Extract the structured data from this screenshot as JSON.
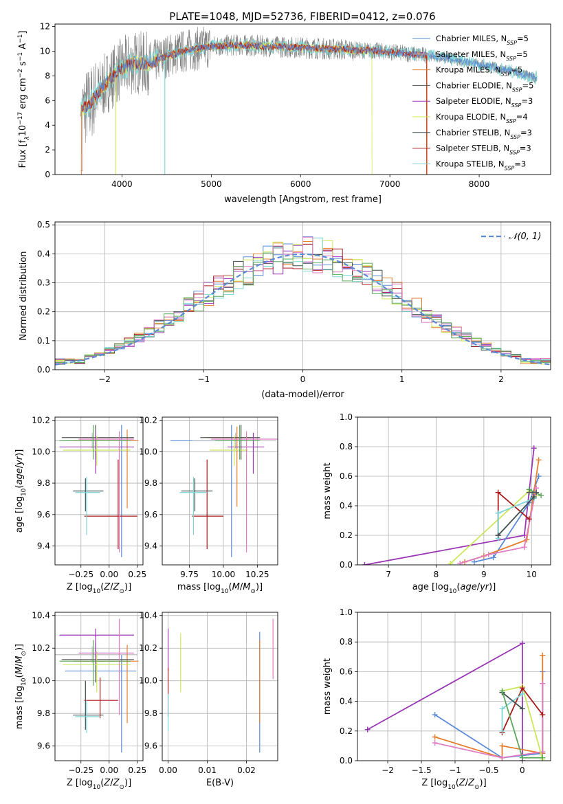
{
  "figure": {
    "title": "PLATE=1048, MJD=52736, FIBERID=0412, z=0.076"
  },
  "colors": {
    "chab_miles": "#5b8bd6",
    "salp_miles": "#bfbfbf",
    "krou_miles": "#e67c2a",
    "chab_elodie": "#555555",
    "salp_elodie": "#9a36b4",
    "krou_elodie": "#cce85a",
    "chab_stelib": "#3f4f4f",
    "salp_stelib": "#aa1a1a",
    "krou_stelib": "#7ed6d6",
    "pink": "#e07bc3",
    "green": "#5aa85a",
    "flux_gray": "#808080",
    "normal_curve": "#5b8bd6"
  },
  "chart_data": [
    {
      "id": "spectrum",
      "type": "line",
      "title": "PLATE=1048, MJD=52736, FIBERID=0412, z=0.076",
      "xlabel": "wavelength [Angstrom, rest frame]",
      "ylabel_parts": [
        "Flux [f",
        "λ",
        "10",
        "−17",
        " erg cm",
        "−2",
        " s",
        "−1",
        " A",
        "−1",
        "]"
      ],
      "xlim": [
        3250,
        8800
      ],
      "ylim": [
        0,
        12.2
      ],
      "xticks": [
        4000,
        5000,
        6000,
        7000,
        8000
      ],
      "yticks": [
        0,
        2,
        4,
        6,
        8,
        10,
        12
      ],
      "grid": false,
      "legend_position": "top-right",
      "legend": [
        {
          "label": "Chabrier MILES, N",
          "n": "5"
        },
        {
          "label": "Salpeter MILES, N",
          "n": "5"
        },
        {
          "label": "Kroupa MILES, N",
          "n": "5"
        },
        {
          "label": "Chabrier ELODIE, N",
          "n": "5"
        },
        {
          "label": "Salpeter ELODIE, N",
          "n": "3"
        },
        {
          "label": "Kroupa ELODIE, N",
          "n": "4"
        },
        {
          "label": "Chabrier STELIB, N",
          "n": "3"
        },
        {
          "label": "Salpeter STELIB, N",
          "n": "3"
        },
        {
          "label": "Kroupa STELIB, N",
          "n": "3"
        }
      ],
      "legend_subscript": "SSP",
      "continuum": [
        [
          3550,
          5.2
        ],
        [
          3650,
          5.8
        ],
        [
          3750,
          6.8
        ],
        [
          3850,
          7.6
        ],
        [
          3950,
          8.3
        ],
        [
          4050,
          8.8
        ],
        [
          4150,
          9.1
        ],
        [
          4300,
          9.0
        ],
        [
          4500,
          9.6
        ],
        [
          4700,
          10.0
        ],
        [
          5000,
          10.4
        ],
        [
          5300,
          10.5
        ],
        [
          5600,
          10.4
        ],
        [
          6000,
          10.3
        ],
        [
          6300,
          10.2
        ],
        [
          6600,
          10.1
        ],
        [
          6900,
          10.0
        ],
        [
          7200,
          9.8
        ],
        [
          7500,
          9.6
        ],
        [
          7800,
          9.2
        ],
        [
          8100,
          8.8
        ],
        [
          8400,
          8.3
        ],
        [
          8650,
          7.8
        ]
      ]
    },
    {
      "id": "residuals",
      "type": "histogram",
      "xlabel": "(data-model)/error",
      "ylabel": "Normed distribution",
      "xlim": [
        -2.5,
        2.5
      ],
      "ylim": [
        0,
        0.51
      ],
      "xticks": [
        -2,
        -1,
        0,
        1,
        2
      ],
      "yticks": [
        0.0,
        0.1,
        0.2,
        0.3,
        0.4,
        0.5
      ],
      "grid": true,
      "legend_position": "top-right",
      "legend_label": "𝒩(0, 1)",
      "bin_width": 0.1
    },
    {
      "id": "age_vs_Z",
      "type": "errorbar",
      "xlabel": "Z [log10(Z/Z⊙)]",
      "ylabel": "age  [log10(age/yr)]",
      "xlim": [
        -0.48,
        0.3
      ],
      "ylim": [
        9.28,
        10.22
      ],
      "xticks": [
        -0.25,
        0.0,
        0.25
      ],
      "yticks": [
        9.4,
        9.6,
        9.8,
        10.0,
        10.2
      ],
      "grid": true,
      "points": [
        {
          "c": "chab_miles",
          "x": 0.11,
          "y": 10.07,
          "xe": [
            0.5,
            0.13
          ],
          "ye": [
            0.74,
            0.1
          ]
        },
        {
          "c": "salp_miles",
          "x": -0.15,
          "y": 10.07,
          "xe": [
            0.33,
            0.38
          ],
          "ye": [
            0.05,
            0.05
          ]
        },
        {
          "c": "krou_miles",
          "x": 0.16,
          "y": 10.07,
          "xe": [
            0.48,
            0.1
          ],
          "ye": [
            0.43,
            0.07
          ]
        },
        {
          "c": "chab_elodie",
          "x": -0.12,
          "y": 10.09,
          "xe": [
            0.3,
            0.34
          ],
          "ye": [
            0.14,
            0.08
          ]
        },
        {
          "c": "salp_elodie",
          "x": -0.12,
          "y": 10.03,
          "xe": [
            0.32,
            0.34
          ],
          "ye": [
            0.17,
            0.09
          ]
        },
        {
          "c": "krou_elodie",
          "x": -0.11,
          "y": 10.01,
          "xe": [
            0.3,
            0.3
          ],
          "ye": [
            0.1,
            0.09
          ]
        },
        {
          "c": "chab_stelib",
          "x": -0.21,
          "y": 9.75,
          "xe": [
            0.11,
            0.16
          ],
          "ye": [
            0.13,
            0.08
          ]
        },
        {
          "c": "salp_stelib",
          "x": 0.08,
          "y": 9.59,
          "xe": [
            0.3,
            0.17
          ],
          "ye": [
            0.21,
            0.36
          ]
        },
        {
          "c": "krou_stelib",
          "x": -0.2,
          "y": 9.74,
          "xe": [
            0.1,
            0.12
          ],
          "ye": [
            0.27,
            0.1
          ]
        },
        {
          "c": "pink",
          "x": 0.09,
          "y": 10.08,
          "xe": [
            0.36,
            0.13
          ],
          "ye": [
            0.72,
            0.05
          ]
        },
        {
          "c": "green",
          "x": -0.14,
          "y": 10.07,
          "xe": [
            0.3,
            0.33
          ],
          "ye": [
            0.12,
            0.1
          ]
        }
      ]
    },
    {
      "id": "age_vs_mass",
      "type": "errorbar",
      "xlabel": "mass [log10(M/M⊙)]",
      "ylabel": "",
      "xlim": [
        9.55,
        10.4
      ],
      "ylim": [
        9.28,
        10.22
      ],
      "xticks": [
        9.75,
        10.0,
        10.25
      ],
      "yticks": [
        9.4,
        9.6,
        9.8,
        10.0,
        10.2
      ],
      "grid": true,
      "points": [
        {
          "c": "chab_miles",
          "x": 10.06,
          "y": 10.07,
          "xe": [
            0.45,
            0.12
          ],
          "ye": [
            0.74,
            0.1
          ]
        },
        {
          "c": "salp_miles",
          "x": 10.09,
          "y": 10.07,
          "xe": [
            0.32,
            0.3
          ],
          "ye": [
            0.05,
            0.05
          ]
        },
        {
          "c": "krou_miles",
          "x": 10.1,
          "y": 10.09,
          "xe": [
            0.22,
            0.1
          ],
          "ye": [
            0.44,
            0.07
          ]
        },
        {
          "c": "chab_elodie",
          "x": 10.13,
          "y": 10.09,
          "xe": [
            0.3,
            0.14
          ],
          "ye": [
            0.14,
            0.08
          ]
        },
        {
          "c": "salp_elodie",
          "x": 10.22,
          "y": 10.03,
          "xe": [
            0.19,
            0.08
          ],
          "ye": [
            0.17,
            0.09
          ]
        },
        {
          "c": "krou_elodie",
          "x": 10.08,
          "y": 10.01,
          "xe": [
            0.18,
            0.1
          ],
          "ye": [
            0.1,
            0.09
          ]
        },
        {
          "c": "chab_stelib",
          "x": 9.79,
          "y": 9.75,
          "xe": [
            0.1,
            0.13
          ],
          "ye": [
            0.13,
            0.08
          ]
        },
        {
          "c": "salp_stelib",
          "x": 9.88,
          "y": 9.59,
          "xe": [
            0.11,
            0.12
          ],
          "ye": [
            0.21,
            0.36
          ]
        },
        {
          "c": "krou_stelib",
          "x": 9.78,
          "y": 9.74,
          "xe": [
            0.1,
            0.1
          ],
          "ye": [
            0.27,
            0.1
          ]
        },
        {
          "c": "pink",
          "x": 10.17,
          "y": 10.08,
          "xe": [
            0.26,
            0.25
          ],
          "ye": [
            0.72,
            0.05
          ]
        },
        {
          "c": "green",
          "x": 10.12,
          "y": 10.07,
          "xe": [
            0.18,
            0.15
          ],
          "ye": [
            0.12,
            0.1
          ]
        }
      ]
    },
    {
      "id": "massweight_vs_age",
      "type": "line",
      "xlabel": "age  [log10(age/yr)]",
      "ylabel": "mass weight",
      "xlim": [
        6.35,
        10.4
      ],
      "ylim": [
        0,
        1.0
      ],
      "xticks": [
        7,
        8,
        9,
        10
      ],
      "yticks": [
        0.0,
        0.2,
        0.4,
        0.6,
        0.8,
        1.0
      ],
      "grid": true,
      "series": [
        {
          "c": "salp_elodie",
          "x": [
            6.5,
            9.85,
            10.05
          ],
          "y": [
            0.0,
            0.2,
            0.79
          ]
        },
        {
          "c": "krou_elodie",
          "x": [
            8.3,
            9.95,
            10.1
          ],
          "y": [
            0.01,
            0.5,
            0.47
          ]
        },
        {
          "c": "chab_miles",
          "x": [
            8.8,
            9.2,
            9.95,
            10.15
          ],
          "y": [
            0.02,
            0.05,
            0.42,
            0.6
          ]
        },
        {
          "c": "krou_miles",
          "x": [
            8.6,
            9.0,
            9.9,
            10.15
          ],
          "y": [
            0.02,
            0.06,
            0.17,
            0.71
          ]
        },
        {
          "c": "pink",
          "x": [
            8.5,
            9.1,
            9.85,
            10.1
          ],
          "y": [
            0.01,
            0.07,
            0.12,
            0.52
          ]
        },
        {
          "c": "salp_stelib",
          "x": [
            9.3,
            9.3,
            9.95
          ],
          "y": [
            0.2,
            0.49,
            0.31
          ]
        },
        {
          "c": "krou_stelib",
          "x": [
            9.3,
            9.3,
            10.05
          ],
          "y": [
            0.18,
            0.35,
            0.45
          ]
        },
        {
          "c": "chab_stelib",
          "x": [
            9.3,
            10.05
          ],
          "y": [
            0.2,
            0.46
          ]
        },
        {
          "c": "green",
          "x": [
            9.95,
            10.2
          ],
          "y": [
            0.51,
            0.47
          ]
        },
        {
          "c": "chab_elodie",
          "x": [
            9.95,
            10.1
          ],
          "y": [
            0.49,
            0.49
          ]
        }
      ]
    },
    {
      "id": "mass_vs_Z",
      "type": "errorbar",
      "xlabel": "Z [log10(Z/Z⊙)]",
      "ylabel": "mass [log10(M/M⊙)]",
      "xlim": [
        -0.48,
        0.3
      ],
      "ylim": [
        9.51,
        10.42
      ],
      "xticks": [
        -0.25,
        0.0,
        0.25
      ],
      "yticks": [
        9.6,
        9.8,
        10.0,
        10.2,
        10.4
      ],
      "grid": true,
      "points": [
        {
          "c": "chab_miles",
          "x": 0.11,
          "y": 10.06,
          "xe": [
            0.5,
            0.13
          ],
          "ye": [
            0.5,
            0.1
          ]
        },
        {
          "c": "salp_miles",
          "x": -0.15,
          "y": 10.16,
          "xe": [
            0.33,
            0.4
          ],
          "ye": [
            0.05,
            0.05
          ]
        },
        {
          "c": "krou_miles",
          "x": 0.16,
          "y": 10.12,
          "xe": [
            0.48,
            0.1
          ],
          "ye": [
            0.38,
            0.1
          ]
        },
        {
          "c": "chab_elodie",
          "x": -0.12,
          "y": 10.13,
          "xe": [
            0.3,
            0.34
          ],
          "ye": [
            0.14,
            0.1
          ]
        },
        {
          "c": "salp_elodie",
          "x": -0.12,
          "y": 10.28,
          "xe": [
            0.32,
            0.34
          ],
          "ye": [
            0.18,
            0.04
          ]
        },
        {
          "c": "krou_elodie",
          "x": -0.11,
          "y": 10.1,
          "xe": [
            0.3,
            0.3
          ],
          "ye": [
            0.17,
            0.08
          ]
        },
        {
          "c": "chab_stelib",
          "x": -0.21,
          "y": 9.79,
          "xe": [
            0.11,
            0.16
          ],
          "ye": [
            0.09,
            0.21
          ]
        },
        {
          "c": "salp_stelib",
          "x": -0.08,
          "y": 9.88,
          "xe": [
            0.14,
            0.16
          ],
          "ye": [
            0.11,
            0.14
          ]
        },
        {
          "c": "krou_stelib",
          "x": -0.2,
          "y": 9.78,
          "xe": [
            0.1,
            0.12
          ],
          "ye": [
            0.1,
            0.1
          ]
        },
        {
          "c": "pink",
          "x": 0.09,
          "y": 10.17,
          "xe": [
            0.36,
            0.13
          ],
          "ye": [
            0.38,
            0.21
          ]
        },
        {
          "c": "green",
          "x": -0.14,
          "y": 10.12,
          "xe": [
            0.3,
            0.33
          ],
          "ye": [
            0.15,
            0.13
          ]
        }
      ]
    },
    {
      "id": "mass_vs_EBV",
      "type": "errorbar",
      "xlabel": "E(B-V)",
      "ylabel": "",
      "xlim": [
        -0.0015,
        0.028
      ],
      "ylim": [
        9.51,
        10.42
      ],
      "xticks": [
        0.0,
        0.01,
        0.02
      ],
      "yticks": [
        9.6,
        9.8,
        10.0,
        10.2,
        10.4
      ],
      "grid": true,
      "points": [
        {
          "c": "chab_miles",
          "x": 0.0234,
          "y": 10.06,
          "xe": [
            0,
            0
          ],
          "ye": [
            0.5,
            0.24
          ]
        },
        {
          "c": "krou_miles",
          "x": 0.0234,
          "y": 10.0,
          "xe": [
            0,
            0
          ],
          "ye": [
            0.26,
            0.25
          ]
        },
        {
          "c": "krou_elodie",
          "x": 0.0032,
          "y": 10.1,
          "xe": [
            0,
            0
          ],
          "ye": [
            0.17,
            0.19
          ]
        },
        {
          "c": "salp_elodie",
          "x": 0.0,
          "y": 10.2,
          "xe": [
            0,
            0
          ],
          "ye": [
            0.14,
            0.12
          ]
        },
        {
          "c": "salp_stelib",
          "x": 0.0,
          "y": 9.88,
          "xe": [
            0,
            0
          ],
          "ye": [
            0.1,
            0.2
          ]
        },
        {
          "c": "krou_stelib",
          "x": 0.0,
          "y": 9.8,
          "xe": [
            0,
            0
          ],
          "ye": [
            0.11,
            0.12
          ]
        },
        {
          "c": "pink",
          "x": 0.0268,
          "y": 10.2,
          "xe": [
            0,
            0
          ],
          "ye": [
            0.19,
            0.18
          ]
        }
      ]
    },
    {
      "id": "massweight_vs_Z",
      "type": "line",
      "xlabel": "Z [log10(Z/Z⊙)]",
      "ylabel": "mass weight",
      "xlim": [
        -2.45,
        0.42
      ],
      "ylim": [
        0,
        1.0
      ],
      "xticks": [
        -2.0,
        -1.5,
        -1.0,
        -0.5,
        0.0
      ],
      "yticks": [
        0.0,
        0.2,
        0.4,
        0.6,
        0.8,
        1.0
      ],
      "grid": true,
      "series": [
        {
          "c": "salp_elodie",
          "x": [
            -2.3,
            0.0,
            0.0
          ],
          "y": [
            0.21,
            0.79,
            0.0
          ]
        },
        {
          "c": "chab_miles",
          "x": [
            -1.3,
            -0.3,
            0.3,
            0.3
          ],
          "y": [
            0.31,
            0.02,
            0.05,
            0.6
          ]
        },
        {
          "c": "krou_miles",
          "x": [
            -1.3,
            -0.3,
            -0.3,
            0.3,
            0.3
          ],
          "y": [
            0.16,
            0.02,
            0.1,
            0.05,
            0.71
          ]
        },
        {
          "c": "pink",
          "x": [
            -1.3,
            -0.3,
            0.3,
            0.3
          ],
          "y": [
            0.12,
            0.02,
            0.06,
            0.52
          ]
        },
        {
          "c": "krou_elodie",
          "x": [
            -0.3,
            0.0,
            0.3
          ],
          "y": [
            0.47,
            0.5,
            0.01
          ]
        },
        {
          "c": "salp_stelib",
          "x": [
            -0.3,
            0.0,
            0.3
          ],
          "y": [
            0.19,
            0.49,
            0.31
          ]
        },
        {
          "c": "krou_stelib",
          "x": [
            -0.3,
            -0.3,
            0.0
          ],
          "y": [
            0.2,
            0.35,
            0.45
          ]
        },
        {
          "c": "chab_stelib",
          "x": [
            -0.3,
            0.0
          ],
          "y": [
            0.46,
            0.35
          ]
        },
        {
          "c": "green",
          "x": [
            -0.3,
            0.0,
            0.3
          ],
          "y": [
            0.47,
            0.02,
            0.02
          ]
        }
      ]
    }
  ]
}
